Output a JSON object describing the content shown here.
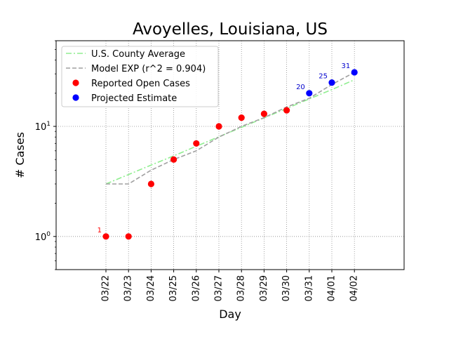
{
  "chart_data": {
    "type": "scatter",
    "title": "Avoyelles, Louisiana, US",
    "xlabel": "Day",
    "ylabel": "# Cases",
    "yscale": "log",
    "ylim": [
      0.5,
      60
    ],
    "yticks": [
      {
        "value": 1,
        "label": "10^0"
      },
      {
        "value": 10,
        "label": "10^1"
      }
    ],
    "grid": true,
    "legend_position": "top-left",
    "categories": [
      "03/22",
      "03/23",
      "03/24",
      "03/25",
      "03/26",
      "03/27",
      "03/28",
      "03/29",
      "03/30",
      "03/31",
      "04/01",
      "04/02"
    ],
    "series": [
      {
        "name": "U.S. County Average",
        "kind": "line",
        "style": "dashdot",
        "color": "#90ee90",
        "values": [
          3,
          3.65,
          4.45,
          5.4,
          6.6,
          8.05,
          9.8,
          11.95,
          14.55,
          17.75,
          21.6,
          26.5
        ]
      },
      {
        "name": "Model EXP (r^2 = 0.904)",
        "kind": "line",
        "style": "dashed",
        "color": "#a0a0a0",
        "values": [
          3,
          3,
          4,
          5,
          6,
          8,
          10,
          12,
          15,
          18,
          24,
          31
        ]
      },
      {
        "name": "Reported Open Cases",
        "kind": "points",
        "color": "#ff0000",
        "values": [
          1,
          1,
          3,
          5,
          7,
          10,
          12,
          13,
          14,
          null,
          null,
          null
        ]
      },
      {
        "name": "Projected Estimate",
        "kind": "points",
        "color": "#0000ff",
        "values": [
          null,
          null,
          null,
          null,
          null,
          null,
          null,
          null,
          null,
          20,
          25,
          31
        ]
      }
    ],
    "annotations": [
      {
        "category": "03/22",
        "value": 1,
        "text": "1",
        "color": "#ff0000"
      },
      {
        "category": "03/31",
        "value": 20,
        "text": "20",
        "color": "#0000cd"
      },
      {
        "category": "04/01",
        "value": 25,
        "text": "25",
        "color": "#0000cd"
      },
      {
        "category": "04/02",
        "value": 31,
        "text": "31",
        "color": "#0000cd"
      }
    ]
  }
}
